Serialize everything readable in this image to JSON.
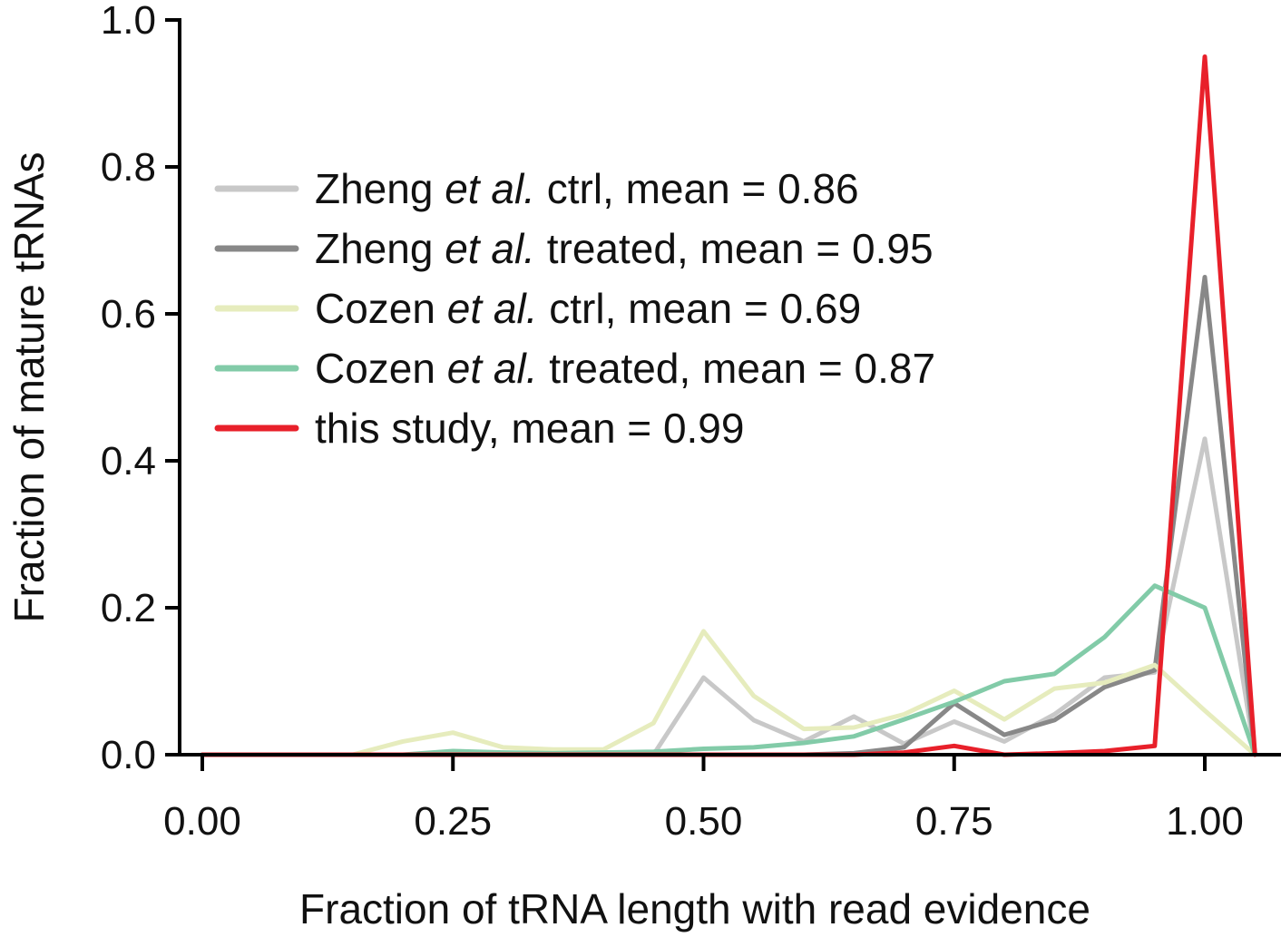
{
  "chart_data": {
    "type": "line",
    "xlabel": "Fraction of tRNA length with read evidence",
    "ylabel": "Fraction of mature tRNAs",
    "xlim": [
      -0.02,
      1.07
    ],
    "ylim": [
      0,
      1.0
    ],
    "xticks": [
      "0.00",
      "0.25",
      "0.50",
      "0.75",
      "1.00"
    ],
    "yticks": [
      "0.0",
      "0.2",
      "0.4",
      "0.6",
      "0.8",
      "1.0"
    ],
    "grid": false,
    "legend_position": "upper-left",
    "x": [
      0,
      0.05,
      0.1,
      0.15,
      0.2,
      0.25,
      0.3,
      0.35,
      0.4,
      0.45,
      0.5,
      0.55,
      0.6,
      0.65,
      0.7,
      0.75,
      0.8,
      0.85,
      0.9,
      0.95,
      1.0,
      1.05
    ],
    "series": [
      {
        "legend": {
          "before": "Zheng ",
          "italic": "et al.",
          "after": " ctrl, mean = 0.86"
        },
        "color": "#c8c8c8",
        "values": [
          0,
          0,
          0,
          0,
          0,
          0,
          0,
          0,
          0,
          0,
          0.105,
          0.047,
          0.018,
          0.052,
          0.015,
          0.045,
          0.018,
          0.055,
          0.105,
          0.112,
          0.43,
          0
        ]
      },
      {
        "legend": {
          "before": "Zheng ",
          "italic": "et al.",
          "after": " treated, mean = 0.95"
        },
        "color": "#888888",
        "values": [
          0,
          0,
          0,
          0,
          0,
          0,
          0,
          0,
          0,
          0,
          0,
          0,
          0,
          0.002,
          0.01,
          0.07,
          0.027,
          0.047,
          0.092,
          0.115,
          0.65,
          0
        ]
      },
      {
        "legend": {
          "before": "Cozen ",
          "italic": "et al.",
          "after": " ctrl, mean = 0.69"
        },
        "color": "#e6ecbd",
        "values": [
          0,
          0,
          0,
          0,
          0.018,
          0.03,
          0.01,
          0.007,
          0.007,
          0.043,
          0.168,
          0.08,
          0.035,
          0.037,
          0.055,
          0.087,
          0.048,
          0.09,
          0.098,
          0.122,
          0.06,
          0
        ]
      },
      {
        "legend": {
          "before": "Cozen ",
          "italic": "et al.",
          "after": " treated, mean = 0.87"
        },
        "color": "#82cba8",
        "values": [
          0,
          0,
          0,
          0,
          0,
          0.005,
          0.003,
          0.002,
          0.003,
          0.004,
          0.008,
          0.01,
          0.016,
          0.025,
          0.048,
          0.072,
          0.1,
          0.11,
          0.16,
          0.23,
          0.2,
          0
        ]
      },
      {
        "legend": {
          "before": "this study, mean = 0.99",
          "italic": "",
          "after": ""
        },
        "color": "#e8202a",
        "values": [
          0,
          0,
          0,
          0,
          0,
          0,
          0,
          0,
          0,
          0,
          0,
          0,
          0,
          0,
          0.003,
          0.012,
          0,
          0.002,
          0.005,
          0.012,
          0.95,
          0
        ]
      }
    ]
  }
}
